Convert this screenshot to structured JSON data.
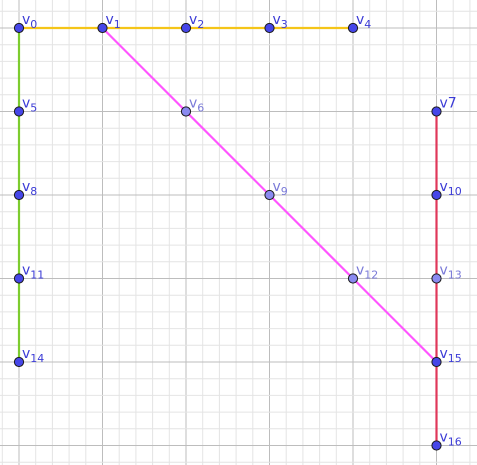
{
  "colors": {
    "background": "#ffffff",
    "grid_minor": "#e4e4e4",
    "grid_major": "#bdbdbd",
    "vertex_fill": "#4646e8",
    "vertex_fill_faded": "#8a8af0",
    "vertex_stroke": "#1a1a1a",
    "label": "#3b3bd6",
    "label_faded": "#7a7ad8"
  },
  "vertices": [
    {
      "id": "v0",
      "prefix": "v",
      "sub": "0",
      "faded": false
    },
    {
      "id": "v1",
      "prefix": "v",
      "sub": "1",
      "faded": false
    },
    {
      "id": "v2",
      "prefix": "v",
      "sub": "2",
      "faded": false
    },
    {
      "id": "v3",
      "prefix": "v",
      "sub": "3",
      "faded": false
    },
    {
      "id": "v4",
      "prefix": "v",
      "sub": "4",
      "faded": false
    },
    {
      "id": "v5",
      "prefix": "v",
      "sub": "5",
      "faded": false
    },
    {
      "id": "v6",
      "prefix": "v",
      "sub": "6",
      "faded": true
    },
    {
      "id": "v7",
      "prefix": "v7",
      "sub": "",
      "faded": false
    },
    {
      "id": "v8",
      "prefix": "v",
      "sub": "8",
      "faded": false
    },
    {
      "id": "v9",
      "prefix": "v",
      "sub": "9",
      "faded": true
    },
    {
      "id": "v10",
      "prefix": "v",
      "sub": "10",
      "faded": false
    },
    {
      "id": "v11",
      "prefix": "v",
      "sub": "11",
      "faded": false
    },
    {
      "id": "v12",
      "prefix": "v",
      "sub": "12",
      "faded": true
    },
    {
      "id": "v13",
      "prefix": "v",
      "sub": "13",
      "faded": true
    },
    {
      "id": "v14",
      "prefix": "v",
      "sub": "14",
      "faded": false
    },
    {
      "id": "v15",
      "prefix": "v",
      "sub": "15",
      "faded": false
    },
    {
      "id": "v16",
      "prefix": "v",
      "sub": "16",
      "faded": false
    }
  ],
  "segments": [
    {
      "name": "yellow-segment",
      "color": "#f5c518",
      "from": "v0",
      "to": "v4"
    },
    {
      "name": "green-segment",
      "color": "#7dcc2f",
      "from": "v0",
      "to": "v14"
    },
    {
      "name": "magenta-segment",
      "color": "#ff55ff",
      "from": "v1",
      "to": "v15"
    },
    {
      "name": "red-segment",
      "color": "#e0385a",
      "from": "v7",
      "to": "v16"
    }
  ]
}
